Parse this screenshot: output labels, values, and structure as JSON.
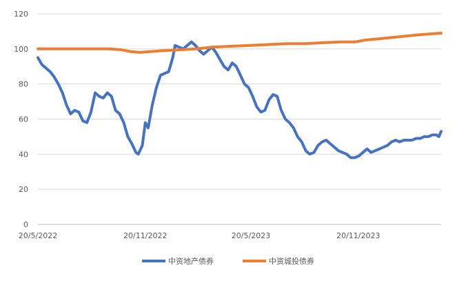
{
  "chart_data": {
    "type": "line",
    "title": "",
    "xlabel": "",
    "ylabel": "",
    "ylim": [
      0,
      120
    ],
    "yticks": [
      0,
      20,
      40,
      60,
      80,
      100,
      120
    ],
    "grid": true,
    "legend_position": "bottom",
    "x_ticks": [
      "20/5/2022",
      "20/11/2022",
      "20/5/2023",
      "20/11/2023"
    ],
    "x_range": [
      "2022-05-20",
      "2024-04-10"
    ],
    "series": [
      {
        "name": "中资地产债券",
        "color": "#4472C4",
        "points": [
          [
            "2022-05-20",
            95
          ],
          [
            "2022-05-27",
            91
          ],
          [
            "2022-06-03",
            89
          ],
          [
            "2022-06-10",
            87
          ],
          [
            "2022-06-17",
            84
          ],
          [
            "2022-06-24",
            80
          ],
          [
            "2022-07-01",
            75
          ],
          [
            "2022-07-08",
            68
          ],
          [
            "2022-07-15",
            63
          ],
          [
            "2022-07-22",
            65
          ],
          [
            "2022-07-29",
            64
          ],
          [
            "2022-08-05",
            59
          ],
          [
            "2022-08-12",
            58
          ],
          [
            "2022-08-19",
            64
          ],
          [
            "2022-08-26",
            75
          ],
          [
            "2022-09-02",
            73
          ],
          [
            "2022-09-09",
            72
          ],
          [
            "2022-09-16",
            75
          ],
          [
            "2022-09-23",
            73
          ],
          [
            "2022-09-30",
            65
          ],
          [
            "2022-10-07",
            63
          ],
          [
            "2022-10-14",
            58
          ],
          [
            "2022-10-21",
            50
          ],
          [
            "2022-10-28",
            46
          ],
          [
            "2022-11-04",
            41
          ],
          [
            "2022-11-08",
            40
          ],
          [
            "2022-11-15",
            45
          ],
          [
            "2022-11-20",
            58
          ],
          [
            "2022-11-25",
            55
          ],
          [
            "2022-12-02",
            68
          ],
          [
            "2022-12-09",
            78
          ],
          [
            "2022-12-16",
            85
          ],
          [
            "2022-12-23",
            86
          ],
          [
            "2022-12-30",
            87
          ],
          [
            "2023-01-06",
            95
          ],
          [
            "2023-01-10",
            102
          ],
          [
            "2023-01-17",
            101
          ],
          [
            "2023-01-24",
            100
          ],
          [
            "2023-01-31",
            102
          ],
          [
            "2023-02-07",
            104
          ],
          [
            "2023-02-14",
            102
          ],
          [
            "2023-02-21",
            99
          ],
          [
            "2023-02-28",
            97
          ],
          [
            "2023-03-07",
            99
          ],
          [
            "2023-03-14",
            101
          ],
          [
            "2023-03-21",
            98
          ],
          [
            "2023-03-28",
            94
          ],
          [
            "2023-04-04",
            90
          ],
          [
            "2023-04-11",
            88
          ],
          [
            "2023-04-18",
            92
          ],
          [
            "2023-04-25",
            90
          ],
          [
            "2023-05-02",
            85
          ],
          [
            "2023-05-09",
            80
          ],
          [
            "2023-05-16",
            78
          ],
          [
            "2023-05-23",
            73
          ],
          [
            "2023-05-30",
            67
          ],
          [
            "2023-06-06",
            64
          ],
          [
            "2023-06-13",
            65
          ],
          [
            "2023-06-20",
            71
          ],
          [
            "2023-06-27",
            74
          ],
          [
            "2023-07-04",
            73
          ],
          [
            "2023-07-11",
            65
          ],
          [
            "2023-07-18",
            60
          ],
          [
            "2023-07-25",
            58
          ],
          [
            "2023-08-01",
            55
          ],
          [
            "2023-08-08",
            50
          ],
          [
            "2023-08-15",
            47
          ],
          [
            "2023-08-22",
            42
          ],
          [
            "2023-08-29",
            40
          ],
          [
            "2023-09-05",
            41
          ],
          [
            "2023-09-12",
            45
          ],
          [
            "2023-09-19",
            47
          ],
          [
            "2023-09-26",
            48
          ],
          [
            "2023-10-03",
            46
          ],
          [
            "2023-10-10",
            44
          ],
          [
            "2023-10-17",
            42
          ],
          [
            "2023-10-24",
            41
          ],
          [
            "2023-10-31",
            40
          ],
          [
            "2023-11-07",
            38
          ],
          [
            "2023-11-14",
            38
          ],
          [
            "2023-11-21",
            39
          ],
          [
            "2023-11-28",
            41
          ],
          [
            "2023-12-05",
            43
          ],
          [
            "2023-12-12",
            41
          ],
          [
            "2023-12-19",
            42
          ],
          [
            "2023-12-26",
            43
          ],
          [
            "2024-01-02",
            44
          ],
          [
            "2024-01-09",
            45
          ],
          [
            "2024-01-16",
            47
          ],
          [
            "2024-01-23",
            48
          ],
          [
            "2024-01-30",
            47
          ],
          [
            "2024-02-06",
            48
          ],
          [
            "2024-02-13",
            48
          ],
          [
            "2024-02-20",
            48
          ],
          [
            "2024-02-27",
            49
          ],
          [
            "2024-03-05",
            49
          ],
          [
            "2024-03-12",
            50
          ],
          [
            "2024-03-19",
            50
          ],
          [
            "2024-03-26",
            51
          ],
          [
            "2024-04-02",
            51
          ],
          [
            "2024-04-06",
            50
          ],
          [
            "2024-04-10",
            53
          ]
        ]
      },
      {
        "name": "中资城投债券",
        "color": "#ED7D31",
        "points": [
          [
            "2022-05-20",
            100
          ],
          [
            "2022-07-01",
            100
          ],
          [
            "2022-08-15",
            100
          ],
          [
            "2022-09-20",
            100
          ],
          [
            "2022-10-10",
            99.5
          ],
          [
            "2022-10-25",
            98.5
          ],
          [
            "2022-11-10",
            98
          ],
          [
            "2022-11-30",
            98.5
          ],
          [
            "2022-12-20",
            99
          ],
          [
            "2023-01-20",
            99.5
          ],
          [
            "2023-02-15",
            100
          ],
          [
            "2023-03-15",
            101
          ],
          [
            "2023-04-15",
            101.5
          ],
          [
            "2023-05-20",
            102
          ],
          [
            "2023-06-20",
            102.5
          ],
          [
            "2023-07-20",
            103
          ],
          [
            "2023-08-20",
            103
          ],
          [
            "2023-09-20",
            103.5
          ],
          [
            "2023-10-20",
            104
          ],
          [
            "2023-11-15",
            104
          ],
          [
            "2023-12-01",
            105
          ],
          [
            "2024-01-01",
            106
          ],
          [
            "2024-02-01",
            107
          ],
          [
            "2024-03-01",
            108
          ],
          [
            "2024-04-10",
            109
          ]
        ]
      }
    ]
  }
}
